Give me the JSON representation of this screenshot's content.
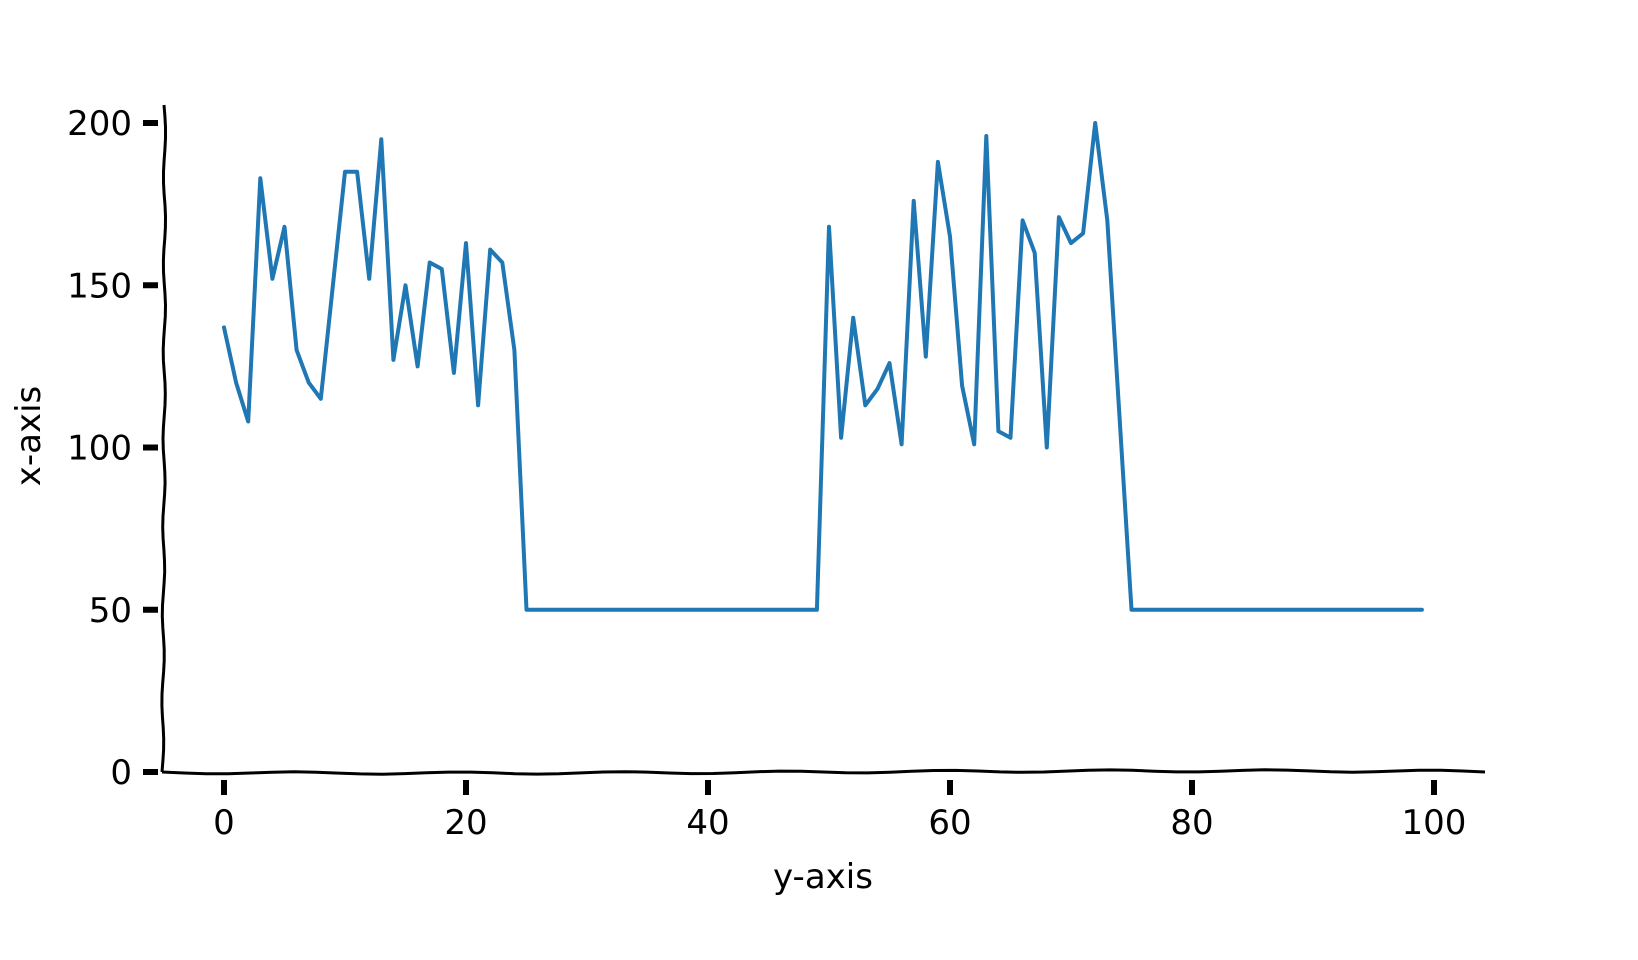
{
  "chart_data": {
    "type": "line",
    "title": "",
    "xlabel": "y-axis",
    "ylabel": "x-axis",
    "xlim": [
      -5,
      104
    ],
    "ylim": [
      0,
      205
    ],
    "xticks": [
      0,
      20,
      40,
      60,
      80,
      100
    ],
    "xtick_labels": [
      "0",
      "20",
      "40",
      "60",
      "80",
      "100"
    ],
    "yticks": [
      0,
      50,
      100,
      150,
      200
    ],
    "ytick_labels": [
      "0",
      "50",
      "100",
      "150",
      "200"
    ],
    "grid": false,
    "legend": "none",
    "series": [
      {
        "color": "#1f77b4",
        "x": [
          0,
          1,
          2,
          3,
          4,
          5,
          6,
          7,
          8,
          9,
          10,
          11,
          12,
          13,
          14,
          15,
          16,
          17,
          18,
          19,
          20,
          21,
          22,
          23,
          24,
          25,
          26,
          27,
          28,
          29,
          30,
          31,
          32,
          33,
          34,
          35,
          36,
          37,
          38,
          39,
          40,
          41,
          42,
          43,
          44,
          45,
          46,
          47,
          48,
          49,
          50,
          51,
          52,
          53,
          54,
          55,
          56,
          57,
          58,
          59,
          60,
          61,
          62,
          63,
          64,
          65,
          66,
          67,
          68,
          69,
          70,
          71,
          72,
          73,
          74,
          75,
          76,
          77,
          78,
          79,
          80,
          81,
          82,
          83,
          84,
          85,
          86,
          87,
          88,
          89,
          90,
          91,
          92,
          93,
          94,
          95,
          96,
          97,
          98,
          99
        ],
        "values": [
          137,
          120,
          108,
          183,
          152,
          168,
          130,
          120,
          115,
          150,
          185,
          185,
          152,
          195,
          127,
          150,
          125,
          157,
          155,
          123,
          163,
          113,
          161,
          157,
          130,
          50,
          50,
          50,
          50,
          50,
          50,
          50,
          50,
          50,
          50,
          50,
          50,
          50,
          50,
          50,
          50,
          50,
          50,
          50,
          50,
          50,
          50,
          50,
          50,
          50,
          168,
          103,
          140,
          113,
          118,
          126,
          101,
          176,
          128,
          188,
          165,
          119,
          101,
          196,
          105,
          103,
          170,
          160,
          100,
          171,
          163,
          166,
          200,
          170,
          110,
          50,
          50,
          50,
          50,
          50,
          50,
          50,
          50,
          50,
          50,
          50,
          50,
          50,
          50,
          50,
          50,
          50,
          50,
          50,
          50,
          50,
          50,
          50,
          50,
          50
        ]
      }
    ]
  }
}
